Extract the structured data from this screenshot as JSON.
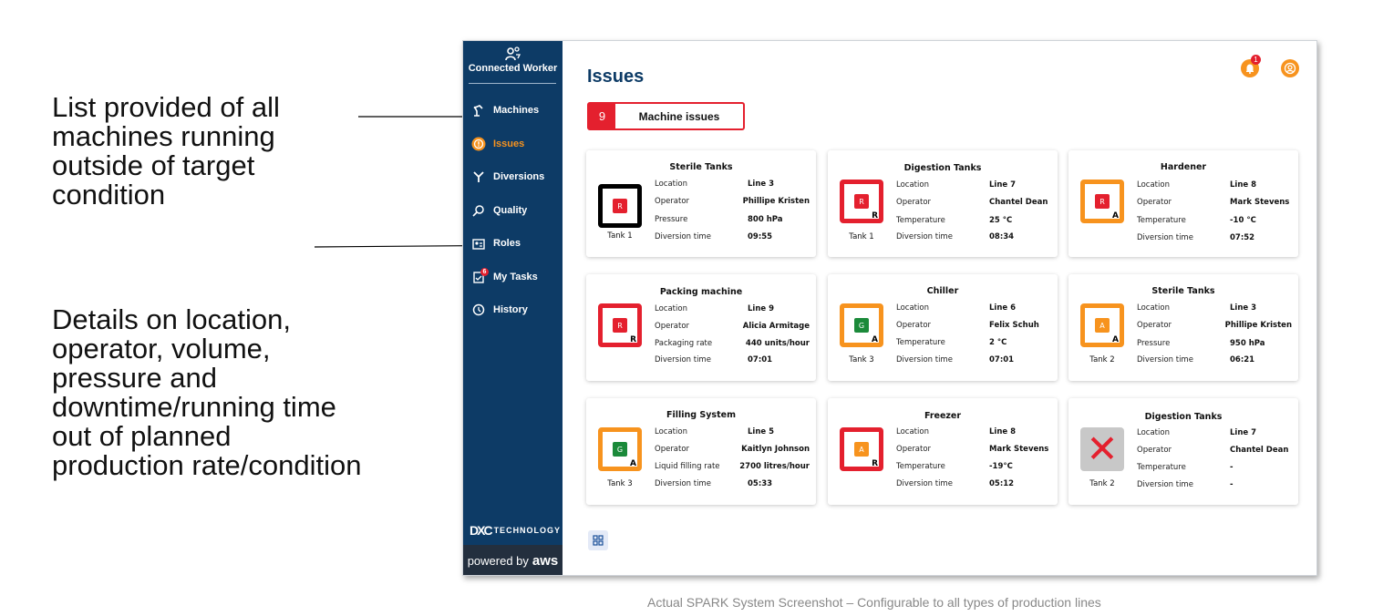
{
  "annotations": {
    "list_note": "List provided of all machines running outside of target condition",
    "details_note": "Details on location, operator, volume, pressure and downtime/running time out of planned production rate/condition"
  },
  "caption": "Actual SPARK System Screenshot – Configurable to all types of production lines",
  "sidebar": {
    "brand": "Connected Worker",
    "items": [
      {
        "label": "Machines",
        "icon": "robot-arm-icon"
      },
      {
        "label": "Issues",
        "icon": "alert-circle-icon"
      },
      {
        "label": "Diversions",
        "icon": "split-icon"
      },
      {
        "label": "Quality",
        "icon": "quality-search-icon"
      },
      {
        "label": "Roles",
        "icon": "id-card-icon"
      },
      {
        "label": "My Tasks",
        "icon": "task-icon",
        "badge": "6"
      },
      {
        "label": "History",
        "icon": "history-icon"
      }
    ],
    "dxc_label": "TECHNOLOGY",
    "dxc_mark": "DXC",
    "powered_by": "powered by",
    "aws": "aws"
  },
  "header": {
    "title": "Issues",
    "notification_count": "1"
  },
  "issues_tab": {
    "count": "9",
    "label": "Machine issues"
  },
  "cards": [
    {
      "title": "Sterile Tanks",
      "status": "R",
      "tank": "Tank 1",
      "rows": [
        [
          "Location",
          "Line 3"
        ],
        [
          "Operator",
          "Phillipe Kristen"
        ],
        [
          "Pressure",
          "800 hPa"
        ],
        [
          "Diversion time",
          "09:55"
        ]
      ]
    },
    {
      "title": "Digestion Tanks",
      "status": "R",
      "sub": "R",
      "tank": "Tank 1",
      "rows": [
        [
          "Location",
          "Line 7"
        ],
        [
          "Operator",
          "Chantel Dean"
        ],
        [
          "Temperature",
          "25 °C"
        ],
        [
          "Diversion time",
          "08:34"
        ]
      ]
    },
    {
      "title": "Hardener",
      "status": "R",
      "sub": "A",
      "tank": "",
      "rows": [
        [
          "Location",
          "Line 8"
        ],
        [
          "Operator",
          "Mark Stevens"
        ],
        [
          "Temperature",
          "-10 °C"
        ],
        [
          "Diversion time",
          "07:52"
        ]
      ]
    },
    {
      "title": "Packing machine",
      "status": "R",
      "sub": "R",
      "tank": "",
      "rows": [
        [
          "Location",
          "Line 9"
        ],
        [
          "Operator",
          "Alicia Armitage"
        ],
        [
          "Packaging rate",
          "440 units/hour"
        ],
        [
          "Diversion time",
          "07:01"
        ]
      ]
    },
    {
      "title": "Chiller",
      "status": "G",
      "sub": "A",
      "tank": "Tank 3",
      "rows": [
        [
          "Location",
          "Line 6"
        ],
        [
          "Operator",
          "Felix Schuh"
        ],
        [
          "Temperature",
          "2 °C"
        ],
        [
          "Diversion time",
          "07:01"
        ]
      ]
    },
    {
      "title": "Sterile Tanks",
      "status": "A",
      "sub": "A",
      "tank": "Tank 2",
      "rows": [
        [
          "Location",
          "Line 3"
        ],
        [
          "Operator",
          "Phillipe Kristen"
        ],
        [
          "Pressure",
          "950 hPa"
        ],
        [
          "Diversion time",
          "06:21"
        ]
      ]
    },
    {
      "title": "Filling System",
      "status": "G",
      "sub": "A",
      "tank": "Tank 3",
      "rows": [
        [
          "Location",
          "Line 5"
        ],
        [
          "Operator",
          "Kaitlyn Johnson"
        ],
        [
          "Liquid filling rate",
          "2700 litres/hour"
        ],
        [
          "Diversion time",
          "05:33"
        ]
      ]
    },
    {
      "title": "Freezer",
      "status": "A",
      "sub": "R",
      "tank": "",
      "rows": [
        [
          "Location",
          "Line 8"
        ],
        [
          "Operator",
          "Mark Stevens"
        ],
        [
          "Temperature",
          "-19°C"
        ],
        [
          "Diversion time",
          "05:12"
        ]
      ]
    },
    {
      "title": "Digestion Tanks",
      "status": "✕",
      "tank": "Tank 2",
      "rows": [
        [
          "Location",
          "Line 7"
        ],
        [
          "Operator",
          "Chantel Dean"
        ],
        [
          "Temperature",
          "-"
        ],
        [
          "Diversion time",
          "-"
        ]
      ]
    }
  ],
  "colors": {
    "sidebar": "#0d3b66",
    "alert_red": "#e4202e",
    "accent_orange": "#f7931e",
    "ok_green": "#1b8a3a"
  }
}
